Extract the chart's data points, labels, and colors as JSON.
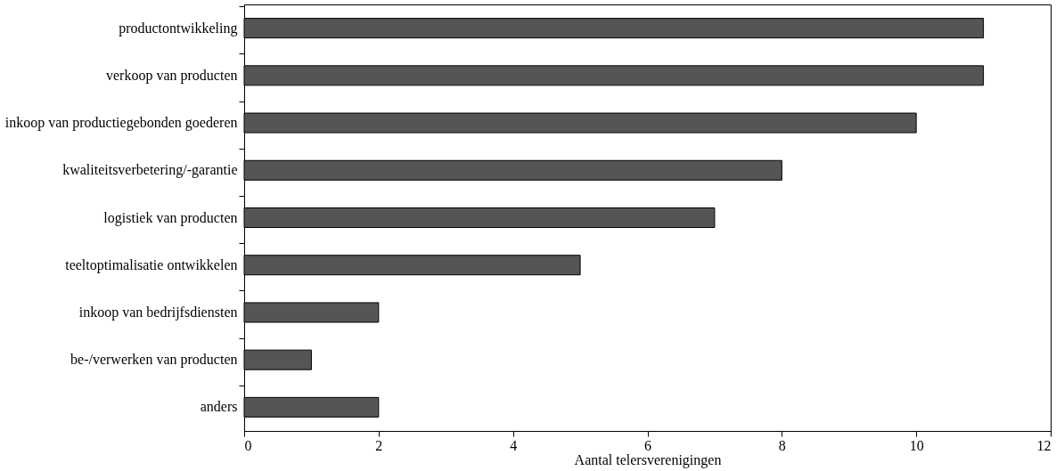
{
  "chart_data": {
    "type": "bar",
    "orientation": "horizontal",
    "xlabel": "Aantal telersverenigingen",
    "categories": [
      "productontwikkeling",
      "verkoop van producten",
      "inkoop van productiegebonden goederen",
      "kwaliteitsverbetering/-garantie",
      "logistiek van producten",
      "teeltoptimalisatie ontwikkelen",
      "inkoop van bedrijfsdiensten",
      "be-/verwerken van producten",
      "anders"
    ],
    "values": [
      11,
      11,
      10,
      8,
      7,
      5,
      2,
      1,
      2
    ],
    "color": "#555555",
    "xlim": [
      0,
      12
    ],
    "xticks": [
      0,
      2,
      4,
      6,
      8,
      10,
      12
    ]
  }
}
